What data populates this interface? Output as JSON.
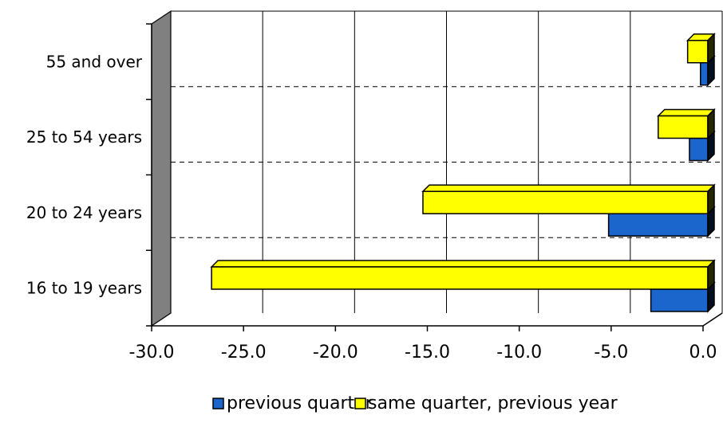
{
  "chart_data": {
    "type": "bar",
    "orientation": "horizontal",
    "style": "3d",
    "categories": [
      "16 to 19 years",
      "20 to 24 years",
      "25 to 54 years",
      "55 and over"
    ],
    "series": [
      {
        "name": "previous quarter",
        "color": "#1a66cc",
        "values": [
          -3.1,
          -5.4,
          -1.0,
          -0.4
        ]
      },
      {
        "name": "same quarter, previous year",
        "color": "#ffff00",
        "values": [
          -27.0,
          -15.5,
          -2.7,
          -1.1
        ]
      }
    ],
    "x_ticks": [
      "-30.0",
      "-25.0",
      "-20.0",
      "-15.0",
      "-10.0",
      "-5.0",
      "0.0"
    ],
    "xlim": [
      -30,
      0
    ],
    "grid": "horizontal dashed between categories, vertical solid at ticks",
    "legend_position": "bottom",
    "wall_color": "#808080"
  }
}
